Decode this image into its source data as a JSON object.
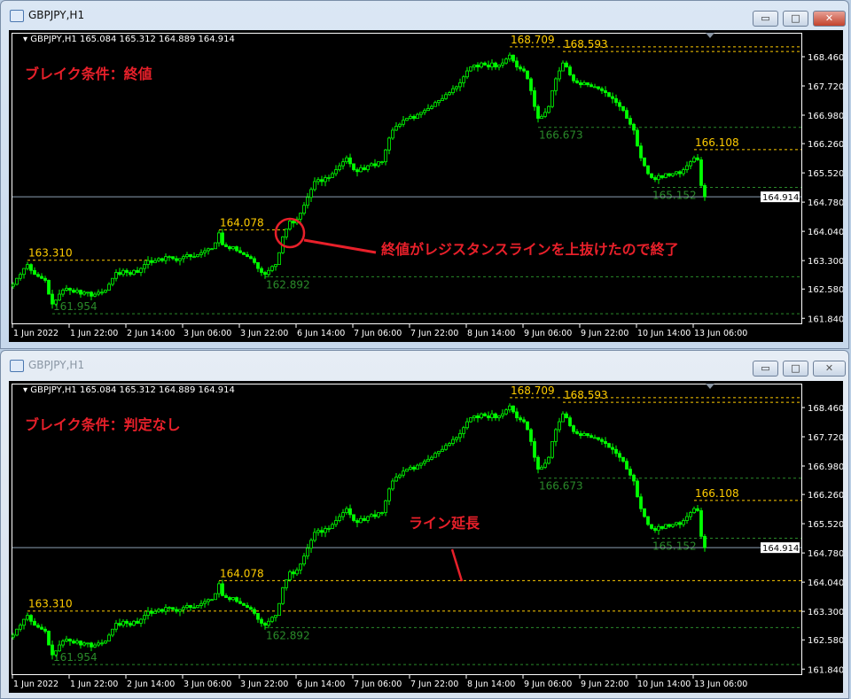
{
  "windows": [
    {
      "title": "GBPJPY,H1",
      "active": true,
      "header": "GBPJPY,H1  165.084 165.312 164.889 164.914",
      "condition_label": "ブレイク条件：終値",
      "annotation": "終値がレジスタンスラインを上抜けたので終了",
      "lines_extended": false
    },
    {
      "title": "GBPJPY,H1",
      "active": false,
      "header": "GBPJPY,H1  165.084 165.312 164.889 164.914",
      "condition_label": "ブレイク条件：判定なし",
      "annotation": "ライン延長",
      "lines_extended": true
    }
  ],
  "window_buttons": {
    "minimize": "▭",
    "maximize": "□",
    "close": "✕"
  },
  "chart_data": {
    "type": "candlestick",
    "symbol": "GBPJPY",
    "timeframe": "H1",
    "current_price": "164.914",
    "y_ticks": [
      "168.460",
      "167.720",
      "166.980",
      "166.260",
      "165.520",
      "164.780",
      "164.040",
      "163.300",
      "162.580",
      "161.840"
    ],
    "x_ticks": [
      "1 Jun 2022",
      "1 Jun 22:00",
      "2 Jun 14:00",
      "3 Jun 06:00",
      "3 Jun 22:00",
      "6 Jun 14:00",
      "7 Jun 06:00",
      "7 Jun 22:00",
      "8 Jun 14:00",
      "9 Jun 06:00",
      "9 Jun 22:00",
      "10 Jun 14:00",
      "13 Jun 06:00"
    ],
    "ylim": [
      161.7,
      168.95
    ],
    "levels": [
      {
        "label": "163.310",
        "price": 163.31,
        "kind": "resistance"
      },
      {
        "label": "164.078",
        "price": 164.078,
        "kind": "resistance"
      },
      {
        "label": "168.709",
        "price": 168.709,
        "kind": "resistance"
      },
      {
        "label": "168.593",
        "price": 168.593,
        "kind": "resistance"
      },
      {
        "label": "166.108",
        "price": 166.108,
        "kind": "resistance"
      },
      {
        "label": "161.954",
        "price": 161.954,
        "kind": "support"
      },
      {
        "label": "162.892",
        "price": 162.892,
        "kind": "support"
      },
      {
        "label": "166.673",
        "price": 166.673,
        "kind": "support"
      },
      {
        "label": "165.152",
        "price": 165.152,
        "kind": "support"
      }
    ],
    "colors": {
      "candle": "#00ff00",
      "resistance": "#ffcc00",
      "support": "#2a8a2a",
      "price_line": "#8ca0b4",
      "annotation": "#e8202a"
    },
    "closes": [
      162.7,
      162.85,
      162.95,
      163.1,
      163.2,
      163.05,
      162.95,
      162.9,
      162.85,
      162.8,
      162.45,
      162.2,
      162.3,
      162.45,
      162.55,
      162.6,
      162.55,
      162.5,
      162.55,
      162.45,
      162.5,
      162.5,
      162.4,
      162.45,
      162.5,
      162.5,
      162.55,
      162.7,
      162.85,
      163.0,
      162.95,
      163.05,
      163.0,
      162.95,
      163.05,
      163.0,
      163.1,
      163.2,
      163.3,
      163.25,
      163.3,
      163.35,
      163.3,
      163.4,
      163.4,
      163.35,
      163.3,
      163.35,
      163.4,
      163.45,
      163.4,
      163.4,
      163.45,
      163.5,
      163.55,
      163.6,
      163.6,
      163.75,
      164.0,
      163.7,
      163.65,
      163.6,
      163.65,
      163.55,
      163.5,
      163.45,
      163.4,
      163.35,
      163.25,
      163.1,
      163.0,
      162.95,
      163.05,
      163.15,
      163.2,
      163.5,
      163.9,
      164.1,
      164.3,
      164.25,
      164.35,
      164.5,
      164.7,
      164.9,
      165.1,
      165.3,
      165.35,
      165.3,
      165.4,
      165.4,
      165.5,
      165.6,
      165.7,
      165.8,
      165.9,
      165.75,
      165.6,
      165.55,
      165.65,
      165.6,
      165.7,
      165.75,
      165.7,
      165.8,
      165.8,
      166.1,
      166.4,
      166.6,
      166.7,
      166.75,
      166.85,
      166.9,
      166.95,
      166.9,
      167.0,
      167.05,
      167.1,
      167.15,
      167.2,
      167.3,
      167.35,
      167.4,
      167.5,
      167.55,
      167.65,
      167.7,
      167.8,
      167.95,
      168.1,
      168.2,
      168.25,
      168.2,
      168.3,
      168.25,
      168.2,
      168.3,
      168.2,
      168.25,
      168.3,
      168.4,
      168.5,
      168.35,
      168.2,
      168.15,
      168.1,
      167.9,
      167.6,
      167.2,
      166.9,
      166.95,
      167.05,
      167.2,
      167.6,
      167.9,
      168.1,
      168.3,
      168.2,
      168.0,
      167.85,
      167.8,
      167.75,
      167.8,
      167.75,
      167.7,
      167.7,
      167.65,
      167.6,
      167.55,
      167.45,
      167.4,
      167.3,
      167.2,
      167.1,
      166.9,
      166.75,
      166.6,
      166.2,
      165.9,
      165.7,
      165.5,
      165.4,
      165.35,
      165.45,
      165.4,
      165.5,
      165.45,
      165.5,
      165.55,
      165.5,
      165.6,
      165.7,
      165.8,
      165.9,
      165.85,
      165.2,
      164.914
    ]
  }
}
